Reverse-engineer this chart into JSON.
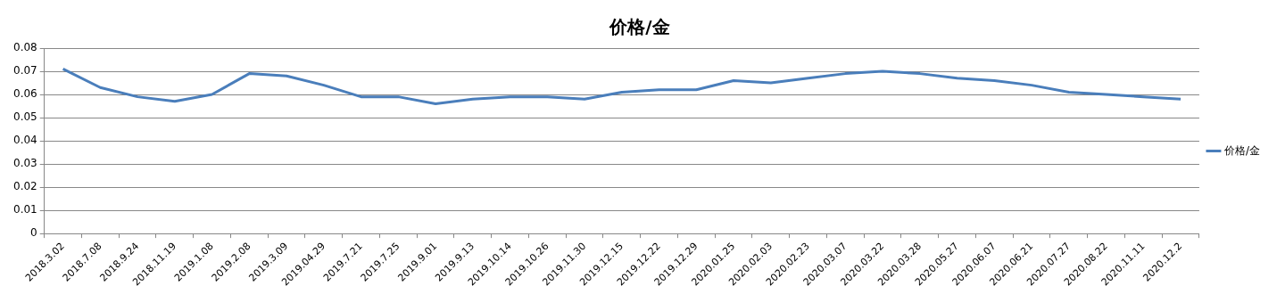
{
  "chart_data": {
    "type": "line",
    "title": "价格/金",
    "categories": [
      "2018.3.02",
      "2018.7.08",
      "2018.9.24",
      "2018.11.19",
      "2019.1.08",
      "2019.2.08",
      "2019.3.09",
      "2019.04.29",
      "2019.7.21",
      "2019.7.25",
      "2019.9.01",
      "2019.9.13",
      "2019.10.14",
      "2019.10.26",
      "2019.11.30",
      "2019.12.15",
      "2019.12.22",
      "2019.12.29",
      "2020.01.25",
      "2020.02.03",
      "2020.02.23",
      "2020.03.07",
      "2020.03.22",
      "2020.03.28",
      "2020.05.27",
      "2020.06.07",
      "2020.06.21",
      "2020.07.27",
      "2020.08.22",
      "2020.11.11",
      "2020.12.2"
    ],
    "series": [
      {
        "name": "价格/金",
        "color": "#4a7ebb",
        "values": [
          0.071,
          0.063,
          0.059,
          0.057,
          0.06,
          0.069,
          0.068,
          0.064,
          0.059,
          0.059,
          0.056,
          0.058,
          0.059,
          0.059,
          0.058,
          0.061,
          0.062,
          0.062,
          0.066,
          0.065,
          0.067,
          0.069,
          0.07,
          0.069,
          0.067,
          0.066,
          0.064,
          0.061,
          0.06,
          0.059,
          0.058
        ]
      }
    ],
    "ylim": [
      0,
      0.08
    ],
    "yticks": [
      0,
      0.01,
      0.02,
      0.03,
      0.04,
      0.05,
      0.06,
      0.07,
      0.08
    ],
    "grid": "y",
    "legend": "right",
    "marker": "none",
    "line_style": "solid"
  }
}
